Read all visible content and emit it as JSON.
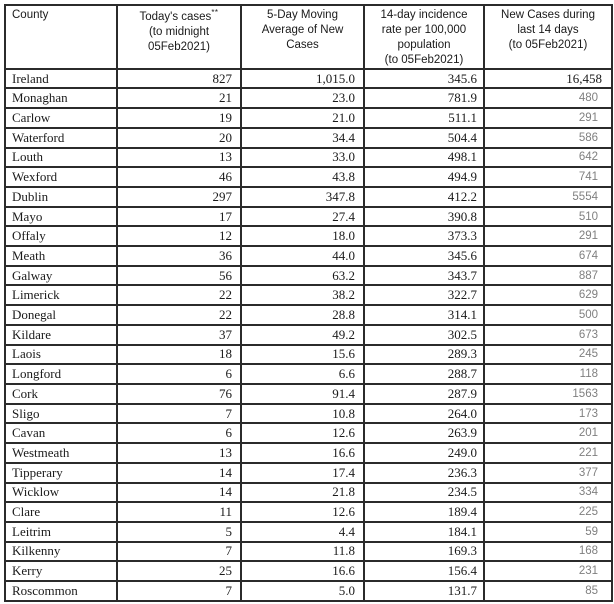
{
  "colors": {
    "background": "#ffffff",
    "border": "#2b2b2b",
    "text": "#1a1a1a",
    "muted_value": "#7f7f7f"
  },
  "header": {
    "county": "County",
    "today_main": "Today's cases",
    "today_sup": "**",
    "today_rest": "(to midnight\n05Feb2021)",
    "avg": "5-Day Moving\nAverage of New\nCases",
    "incidence": "14-day incidence\nrate per 100,000\npopulation\n(to 05Feb2021)",
    "new14": "New Cases during\nlast 14 days\n(to 05Feb2021)"
  },
  "rows": [
    [
      "Ireland",
      "827",
      "1,015.0",
      "345.6",
      "16,458"
    ],
    [
      "Monaghan",
      "21",
      "23.0",
      "781.9",
      "480"
    ],
    [
      "Carlow",
      "19",
      "21.0",
      "511.1",
      "291"
    ],
    [
      "Waterford",
      "20",
      "34.4",
      "504.4",
      "586"
    ],
    [
      "Louth",
      "13",
      "33.0",
      "498.1",
      "642"
    ],
    [
      "Wexford",
      "46",
      "43.8",
      "494.9",
      "741"
    ],
    [
      "Dublin",
      "297",
      "347.8",
      "412.2",
      "5554"
    ],
    [
      "Mayo",
      "17",
      "27.4",
      "390.8",
      "510"
    ],
    [
      "Offaly",
      "12",
      "18.0",
      "373.3",
      "291"
    ],
    [
      "Meath",
      "36",
      "44.0",
      "345.6",
      "674"
    ],
    [
      "Galway",
      "56",
      "63.2",
      "343.7",
      "887"
    ],
    [
      "Limerick",
      "22",
      "38.2",
      "322.7",
      "629"
    ],
    [
      "Donegal",
      "22",
      "28.8",
      "314.1",
      "500"
    ],
    [
      "Kildare",
      "37",
      "49.2",
      "302.5",
      "673"
    ],
    [
      "Laois",
      "18",
      "15.6",
      "289.3",
      "245"
    ],
    [
      "Longford",
      "6",
      "6.6",
      "288.7",
      "118"
    ],
    [
      "Cork",
      "76",
      "91.4",
      "287.9",
      "1563"
    ],
    [
      "Sligo",
      "7",
      "10.8",
      "264.0",
      "173"
    ],
    [
      "Cavan",
      "6",
      "12.6",
      "263.9",
      "201"
    ],
    [
      "Westmeath",
      "13",
      "16.6",
      "249.0",
      "221"
    ],
    [
      "Tipperary",
      "14",
      "17.4",
      "236.3",
      "377"
    ],
    [
      "Wicklow",
      "14",
      "21.8",
      "234.5",
      "334"
    ],
    [
      "Clare",
      "11",
      "12.6",
      "189.4",
      "225"
    ],
    [
      "Leitrim",
      "5",
      "4.4",
      "184.1",
      "59"
    ],
    [
      "Kilkenny",
      "7",
      "11.8",
      "169.3",
      "168"
    ],
    [
      "Kerry",
      "25",
      "16.6",
      "156.4",
      "231"
    ],
    [
      "Roscommon",
      "7",
      "5.0",
      "131.7",
      "85"
    ]
  ],
  "chart_data": {
    "type": "table",
    "columns": [
      "County",
      "Today's cases** (to midnight 05Feb2021)",
      "5-Day Moving Average of New Cases",
      "14-day incidence rate per 100,000 population (to 05Feb2021)",
      "New Cases during last 14 days (to 05Feb2021)"
    ],
    "rows": [
      [
        "Ireland",
        827,
        1015.0,
        345.6,
        16458
      ],
      [
        "Monaghan",
        21,
        23.0,
        781.9,
        480
      ],
      [
        "Carlow",
        19,
        21.0,
        511.1,
        291
      ],
      [
        "Waterford",
        20,
        34.4,
        504.4,
        586
      ],
      [
        "Louth",
        13,
        33.0,
        498.1,
        642
      ],
      [
        "Wexford",
        46,
        43.8,
        494.9,
        741
      ],
      [
        "Dublin",
        297,
        347.8,
        412.2,
        5554
      ],
      [
        "Mayo",
        17,
        27.4,
        390.8,
        510
      ],
      [
        "Offaly",
        12,
        18.0,
        373.3,
        291
      ],
      [
        "Meath",
        36,
        44.0,
        345.6,
        674
      ],
      [
        "Galway",
        56,
        63.2,
        343.7,
        887
      ],
      [
        "Limerick",
        22,
        38.2,
        322.7,
        629
      ],
      [
        "Donegal",
        22,
        28.8,
        314.1,
        500
      ],
      [
        "Kildare",
        37,
        49.2,
        302.5,
        673
      ],
      [
        "Laois",
        18,
        15.6,
        289.3,
        245
      ],
      [
        "Longford",
        6,
        6.6,
        288.7,
        118
      ],
      [
        "Cork",
        76,
        91.4,
        287.9,
        1563
      ],
      [
        "Sligo",
        7,
        10.8,
        264.0,
        173
      ],
      [
        "Cavan",
        6,
        12.6,
        263.9,
        201
      ],
      [
        "Westmeath",
        13,
        16.6,
        249.0,
        221
      ],
      [
        "Tipperary",
        14,
        17.4,
        236.3,
        377
      ],
      [
        "Wicklow",
        14,
        21.8,
        234.5,
        334
      ],
      [
        "Clare",
        11,
        12.6,
        189.4,
        225
      ],
      [
        "Leitrim",
        5,
        4.4,
        184.1,
        59
      ],
      [
        "Kilkenny",
        7,
        11.8,
        169.3,
        168
      ],
      [
        "Kerry",
        25,
        16.6,
        156.4,
        231
      ],
      [
        "Roscommon",
        7,
        5.0,
        131.7,
        85
      ]
    ]
  }
}
